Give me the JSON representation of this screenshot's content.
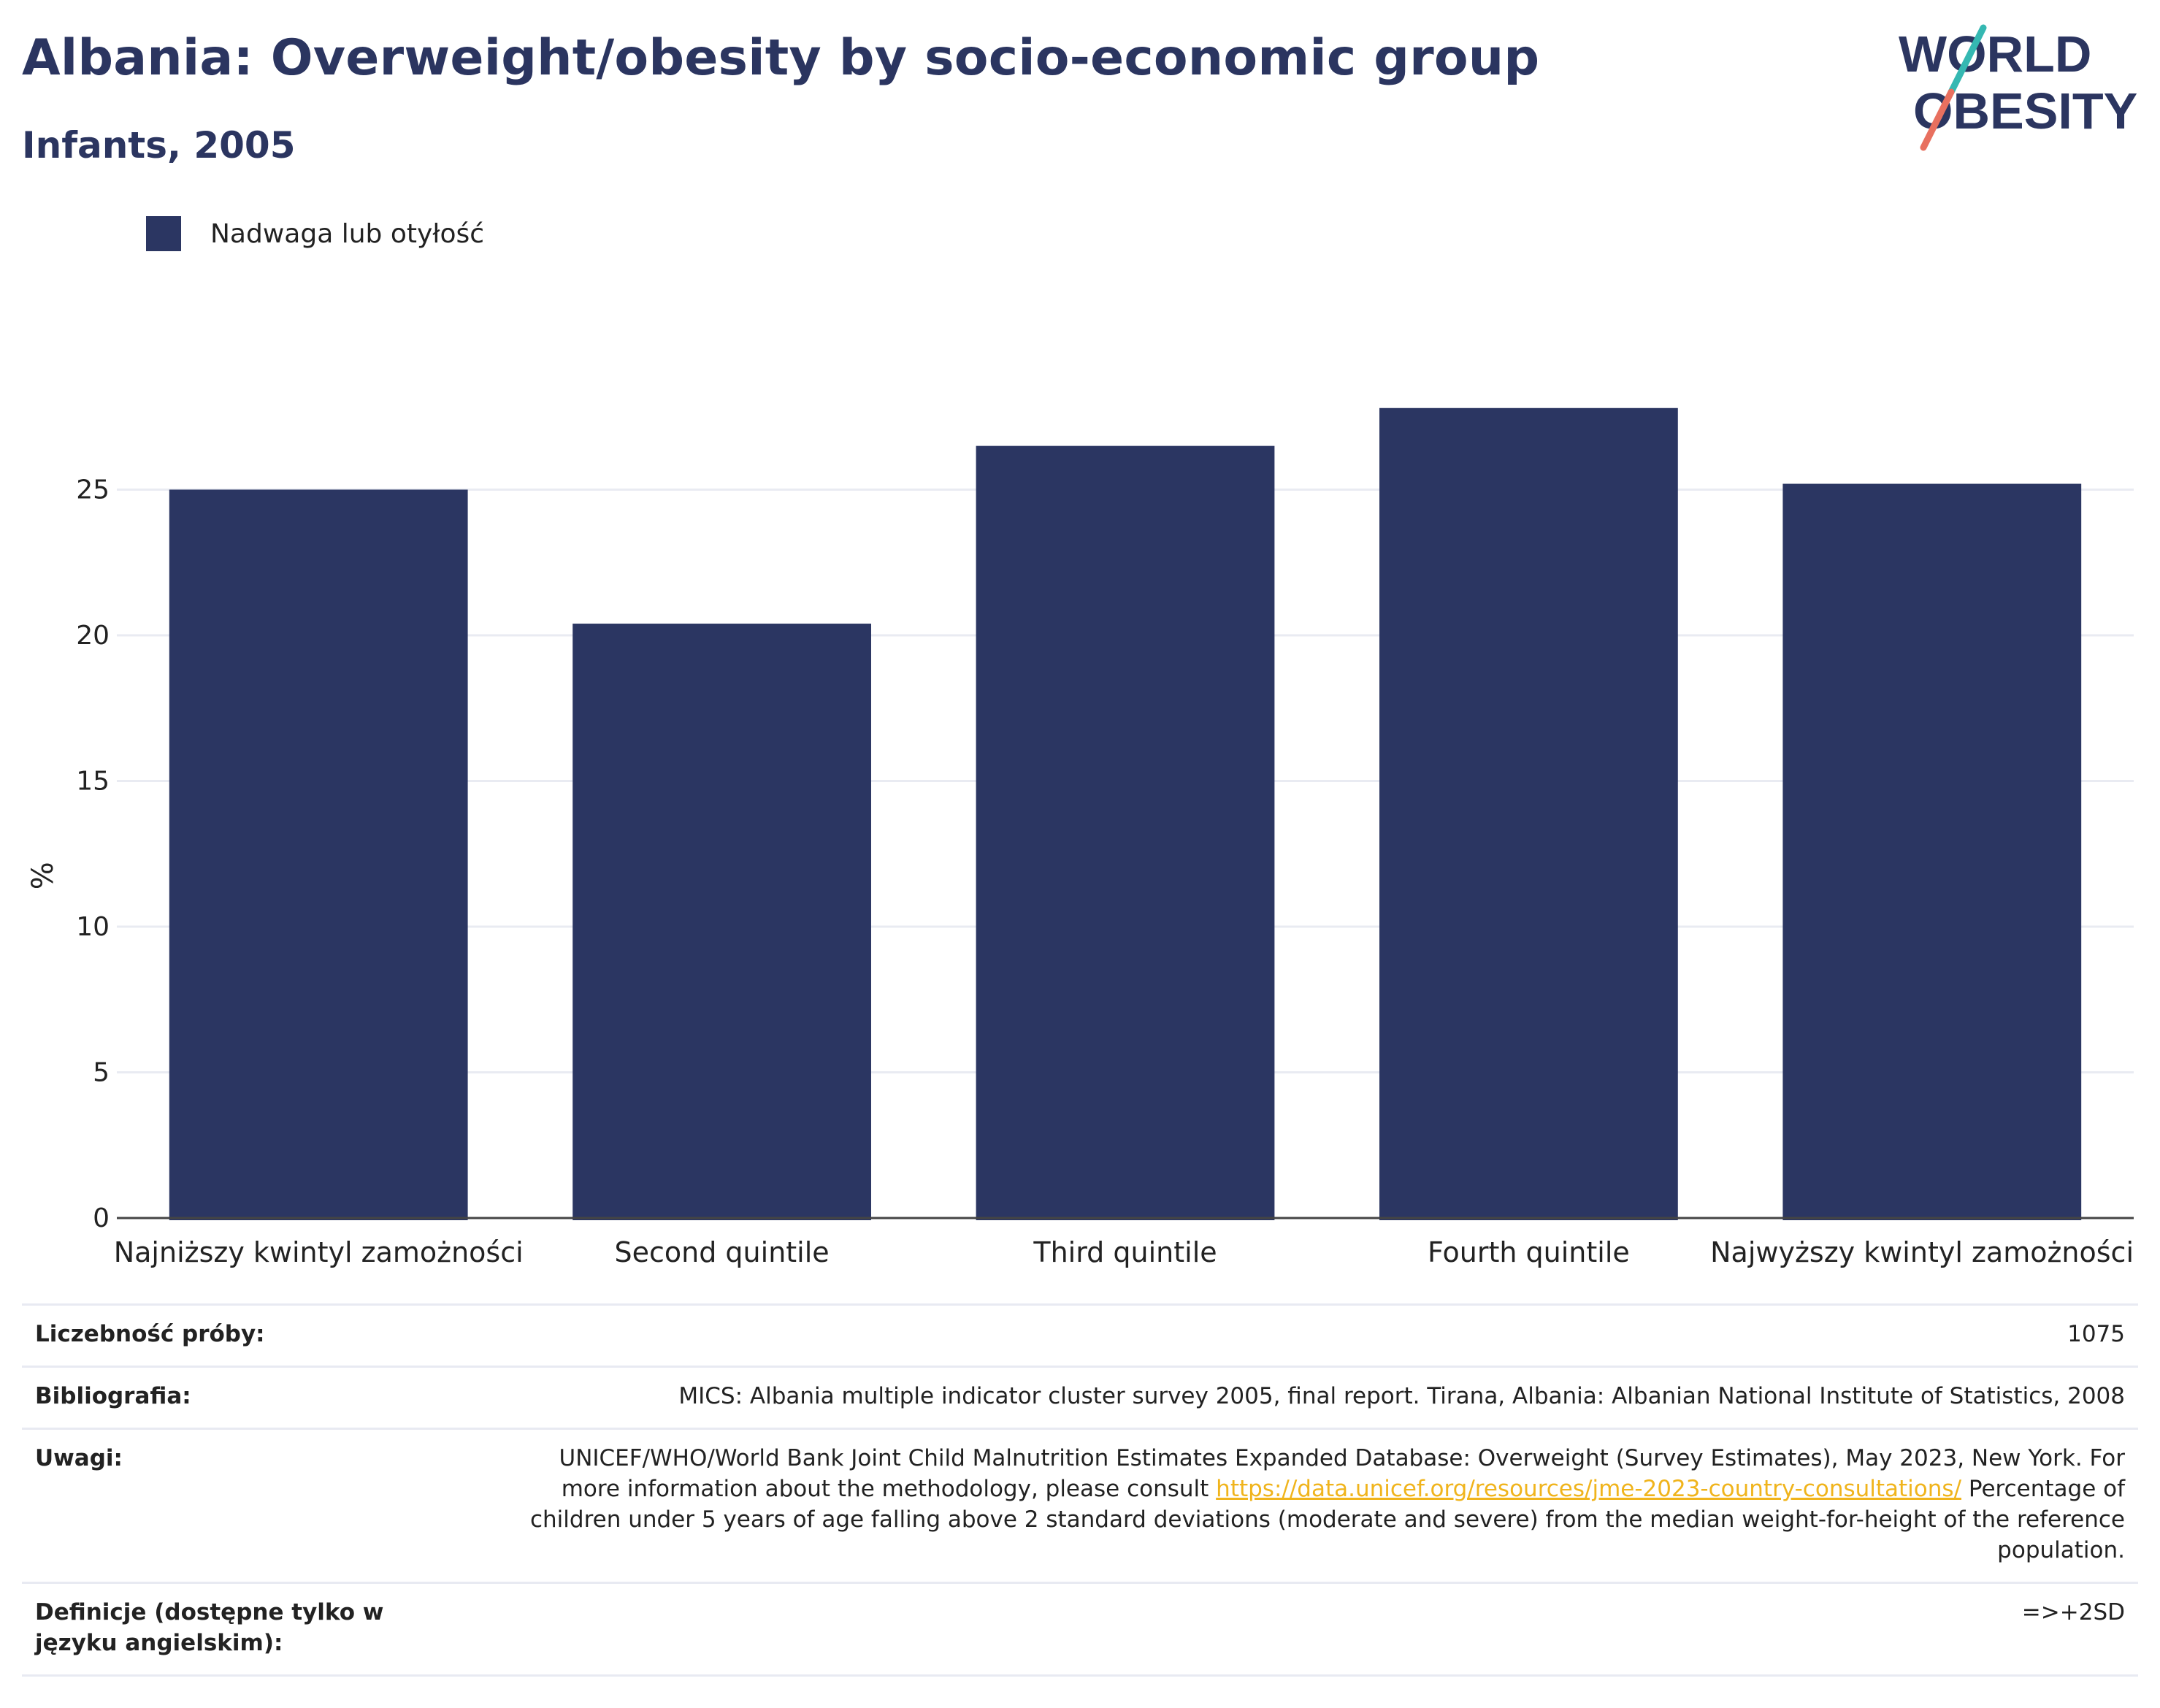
{
  "header": {
    "title": "Albania: Overweight/obesity by socio-economic group",
    "subtitle": "Infants, 2005"
  },
  "logo": {
    "line1": "WORLD",
    "line2": "OBESITY",
    "colors": {
      "text": "#2b3560",
      "slash_teal": "#35b8b2",
      "slash_coral": "#e8705f"
    }
  },
  "legend": {
    "label": "Nadwaga lub otyłość",
    "color": "#2b3662"
  },
  "chart_data": {
    "type": "bar",
    "categories": [
      "Najniższy kwintyl zamożności",
      "Second quintile",
      "Third quintile",
      "Fourth quintile",
      "Najwyższy kwintyl zamożności"
    ],
    "series": [
      {
        "name": "Nadwaga lub otyłość",
        "values": [
          25.0,
          20.4,
          26.5,
          27.8,
          25.2
        ],
        "color": "#2b3662"
      }
    ],
    "ylabel": "%",
    "xlabel": "",
    "ylim": [
      0,
      30
    ],
    "yticks": [
      0,
      5,
      10,
      15,
      20,
      25
    ],
    "grid": true,
    "legend_position": "top-left"
  },
  "meta": {
    "rows": [
      {
        "key": "Liczebność próby:",
        "value": "1075"
      },
      {
        "key": "Bibliografia:",
        "value": "MICS: Albania multiple indicator cluster survey 2005, final report. Tirana, Albania: Albanian National Institute of Statistics, 2008"
      },
      {
        "key": "Uwagi:",
        "value_before": "UNICEF/WHO/World Bank Joint Child Malnutrition Estimates Expanded Database: Overweight (Survey Estimates), May 2023, New York. For more information about the methodology, please consult ",
        "link": "https://data.unicef.org/resources/jme-2023-country-consultations/",
        "value_after": " Percentage of children under 5 years of age falling above 2 standard deviations (moderate and severe) from the median weight-for-height of the reference population."
      },
      {
        "key": "Definicje (dostępne tylko w języku angielskim):",
        "value": "=>+2SD"
      }
    ]
  }
}
